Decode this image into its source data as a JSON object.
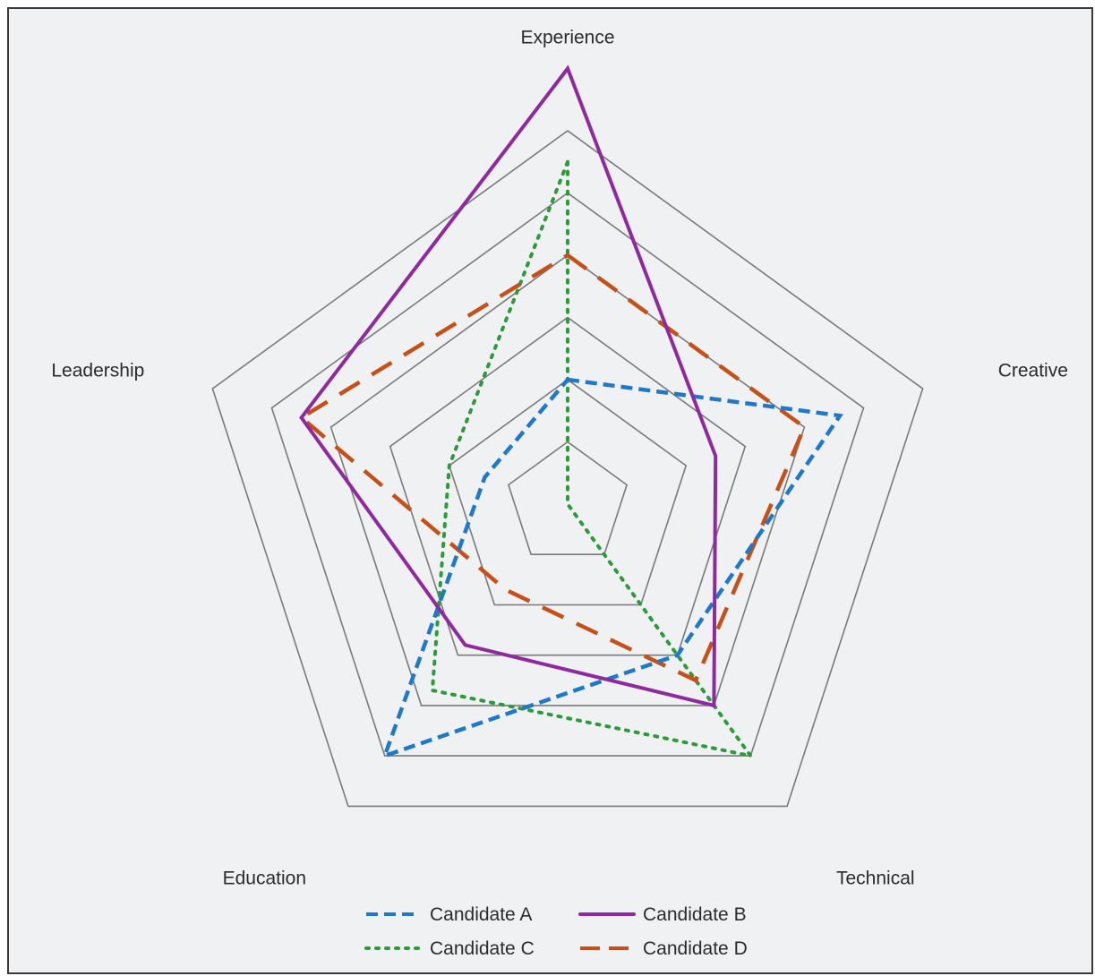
{
  "chart_data": {
    "type": "radar",
    "axes": [
      "Experience",
      "Creative",
      "Technical",
      "Education",
      "Leadership"
    ],
    "r_range": [
      0,
      5
    ],
    "rings": [
      1,
      2,
      3,
      4,
      5,
      6
    ],
    "series": [
      {
        "name": "Candidate A",
        "values": [
          2,
          4.6,
          3,
          5,
          1.4
        ],
        "color": "#1f78c8",
        "style": "dashed"
      },
      {
        "name": "Candidate B",
        "values": [
          7,
          2.5,
          4,
          2.8,
          4.5
        ],
        "color": "#8e2a9e",
        "style": "solid"
      },
      {
        "name": "Candidate C",
        "values": [
          5.5,
          0,
          5,
          3.7,
          2
        ],
        "color": "#2e9a3c",
        "style": "dotted"
      },
      {
        "name": "Candidate D",
        "values": [
          4,
          4,
          3.5,
          1.7,
          4.5
        ],
        "color": "#c4501a",
        "style": "long-dashed"
      }
    ],
    "legend_position": "bottom",
    "grid": true
  }
}
